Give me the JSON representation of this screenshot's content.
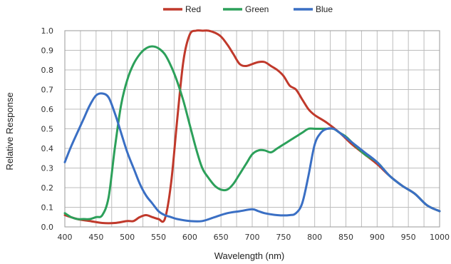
{
  "chart_data": {
    "type": "line",
    "title": "",
    "xlabel": "Wavelength (nm)",
    "ylabel": "Relative Response",
    "xlim": [
      400,
      1000
    ],
    "ylim": [
      0,
      1.0
    ],
    "grid": true,
    "legend_position": "top-center",
    "x_ticks": [
      "400",
      "450",
      "500",
      "550",
      "600",
      "650",
      "700",
      "750",
      "800",
      "850",
      "900",
      "950",
      "1000"
    ],
    "y_ticks": [
      "0.0",
      "0.1",
      "0.2",
      "0.3",
      "0.4",
      "0.5",
      "0.6",
      "0.7",
      "0.8",
      "0.9",
      "1.0"
    ],
    "series": [
      {
        "name": "Red",
        "color": "#c0392b",
        "x": [
          400,
          420,
          440,
          460,
          480,
          500,
          510,
          520,
          530,
          540,
          550,
          560,
          570,
          580,
          590,
          600,
          610,
          620,
          630,
          640,
          650,
          660,
          670,
          680,
          690,
          700,
          710,
          720,
          730,
          740,
          750,
          760,
          770,
          780,
          790,
          800,
          820,
          840,
          860,
          880,
          900,
          920,
          940,
          960,
          980,
          1000
        ],
        "y": [
          0.06,
          0.04,
          0.03,
          0.02,
          0.02,
          0.03,
          0.03,
          0.05,
          0.06,
          0.05,
          0.04,
          0.04,
          0.22,
          0.55,
          0.85,
          0.98,
          1.0,
          1.0,
          1.0,
          0.99,
          0.97,
          0.93,
          0.88,
          0.83,
          0.82,
          0.83,
          0.84,
          0.84,
          0.82,
          0.8,
          0.77,
          0.72,
          0.7,
          0.65,
          0.6,
          0.57,
          0.53,
          0.48,
          0.42,
          0.37,
          0.32,
          0.26,
          0.21,
          0.17,
          0.11,
          0.08
        ]
      },
      {
        "name": "Green",
        "color": "#2ca05a",
        "x": [
          400,
          410,
          420,
          430,
          440,
          450,
          460,
          470,
          480,
          490,
          500,
          510,
          520,
          530,
          540,
          550,
          560,
          570,
          580,
          590,
          600,
          610,
          620,
          630,
          640,
          650,
          660,
          670,
          680,
          690,
          700,
          710,
          720,
          730,
          740,
          750,
          760,
          770,
          780,
          790,
          800,
          810,
          820,
          830,
          840,
          850,
          860,
          880,
          900,
          920,
          940,
          960,
          980,
          1000
        ],
        "y": [
          0.07,
          0.05,
          0.04,
          0.04,
          0.04,
          0.05,
          0.06,
          0.15,
          0.4,
          0.62,
          0.75,
          0.83,
          0.88,
          0.91,
          0.92,
          0.91,
          0.88,
          0.82,
          0.74,
          0.64,
          0.52,
          0.4,
          0.3,
          0.25,
          0.21,
          0.19,
          0.19,
          0.22,
          0.27,
          0.32,
          0.37,
          0.39,
          0.39,
          0.38,
          0.4,
          0.42,
          0.44,
          0.46,
          0.48,
          0.5,
          0.5,
          0.5,
          0.5,
          0.5,
          0.48,
          0.46,
          0.43,
          0.37,
          0.33,
          0.26,
          0.21,
          0.17,
          0.11,
          0.08
        ]
      },
      {
        "name": "Blue",
        "color": "#3a6fc4",
        "x": [
          400,
          410,
          420,
          430,
          440,
          450,
          460,
          470,
          480,
          490,
          500,
          510,
          520,
          530,
          540,
          550,
          560,
          570,
          580,
          600,
          620,
          640,
          660,
          680,
          700,
          710,
          720,
          740,
          760,
          770,
          780,
          790,
          800,
          810,
          820,
          830,
          840,
          860,
          880,
          900,
          920,
          940,
          960,
          980,
          1000
        ],
        "y": [
          0.33,
          0.41,
          0.48,
          0.55,
          0.62,
          0.67,
          0.68,
          0.66,
          0.58,
          0.48,
          0.38,
          0.3,
          0.22,
          0.16,
          0.12,
          0.08,
          0.06,
          0.05,
          0.04,
          0.03,
          0.03,
          0.05,
          0.07,
          0.08,
          0.09,
          0.08,
          0.07,
          0.06,
          0.06,
          0.07,
          0.12,
          0.26,
          0.42,
          0.48,
          0.5,
          0.5,
          0.48,
          0.43,
          0.38,
          0.33,
          0.26,
          0.21,
          0.17,
          0.11,
          0.08
        ]
      }
    ]
  }
}
